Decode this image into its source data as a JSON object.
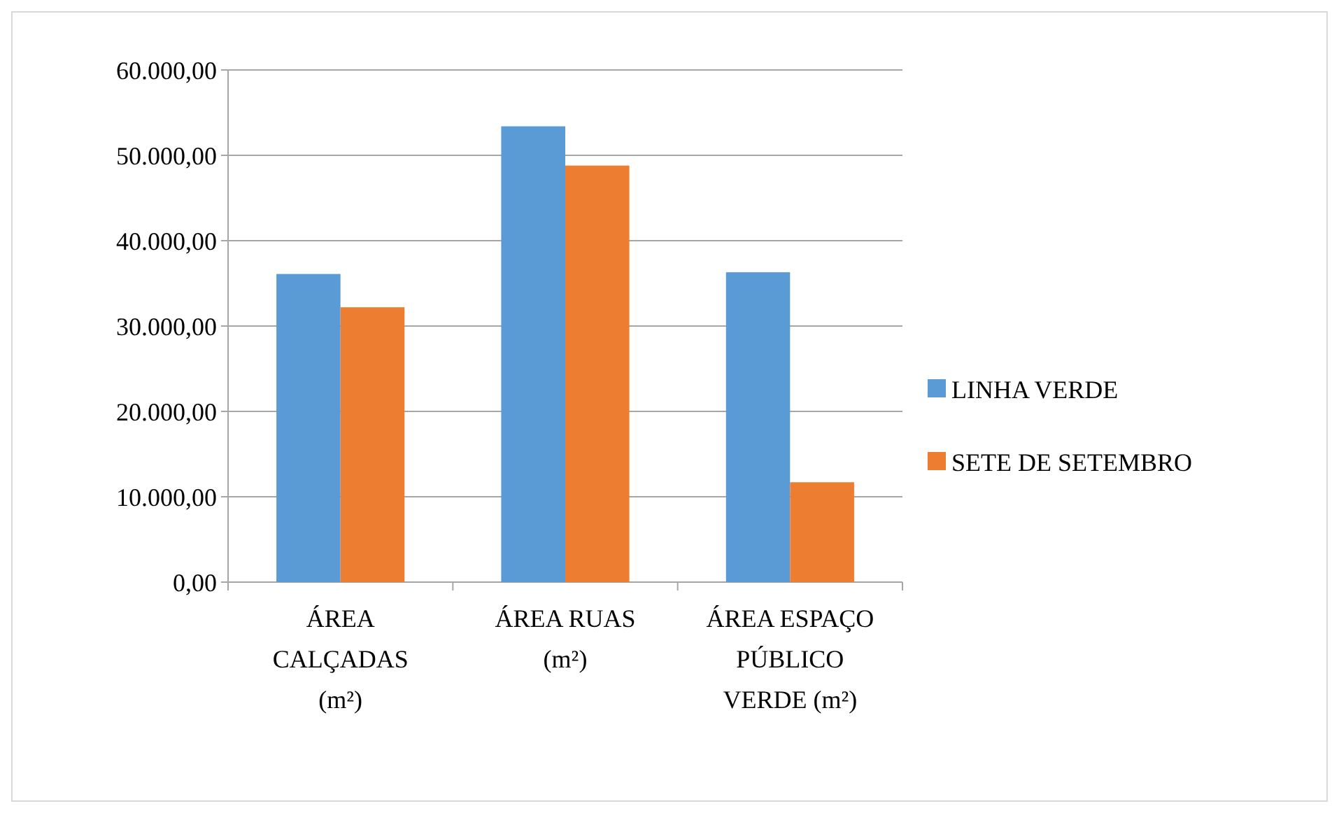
{
  "chart_data": {
    "type": "bar",
    "categories": [
      "ÁREA CALÇADAS (m²)",
      "ÁREA RUAS (m²)",
      "ÁREA ESPAÇO PÚBLICO VERDE (m²)"
    ],
    "series": [
      {
        "name": "LINHA VERDE",
        "color": "#5b9bd5",
        "values": [
          36100,
          53400,
          36300
        ]
      },
      {
        "name": "SETE DE SETEMBRO",
        "color": "#ed7d31",
        "values": [
          32200,
          48800,
          11700
        ]
      }
    ],
    "ylim": [
      0,
      60000
    ],
    "yticks": [
      {
        "value": 0,
        "label": "0,00"
      },
      {
        "value": 10000,
        "label": "10.000,00"
      },
      {
        "value": 20000,
        "label": "20.000,00"
      },
      {
        "value": 30000,
        "label": "30.000,00"
      },
      {
        "value": 40000,
        "label": "40.000,00"
      },
      {
        "value": 50000,
        "label": "50.000,00"
      },
      {
        "value": 60000,
        "label": "60.000,00"
      }
    ],
    "grid": "y",
    "legend": "right"
  }
}
